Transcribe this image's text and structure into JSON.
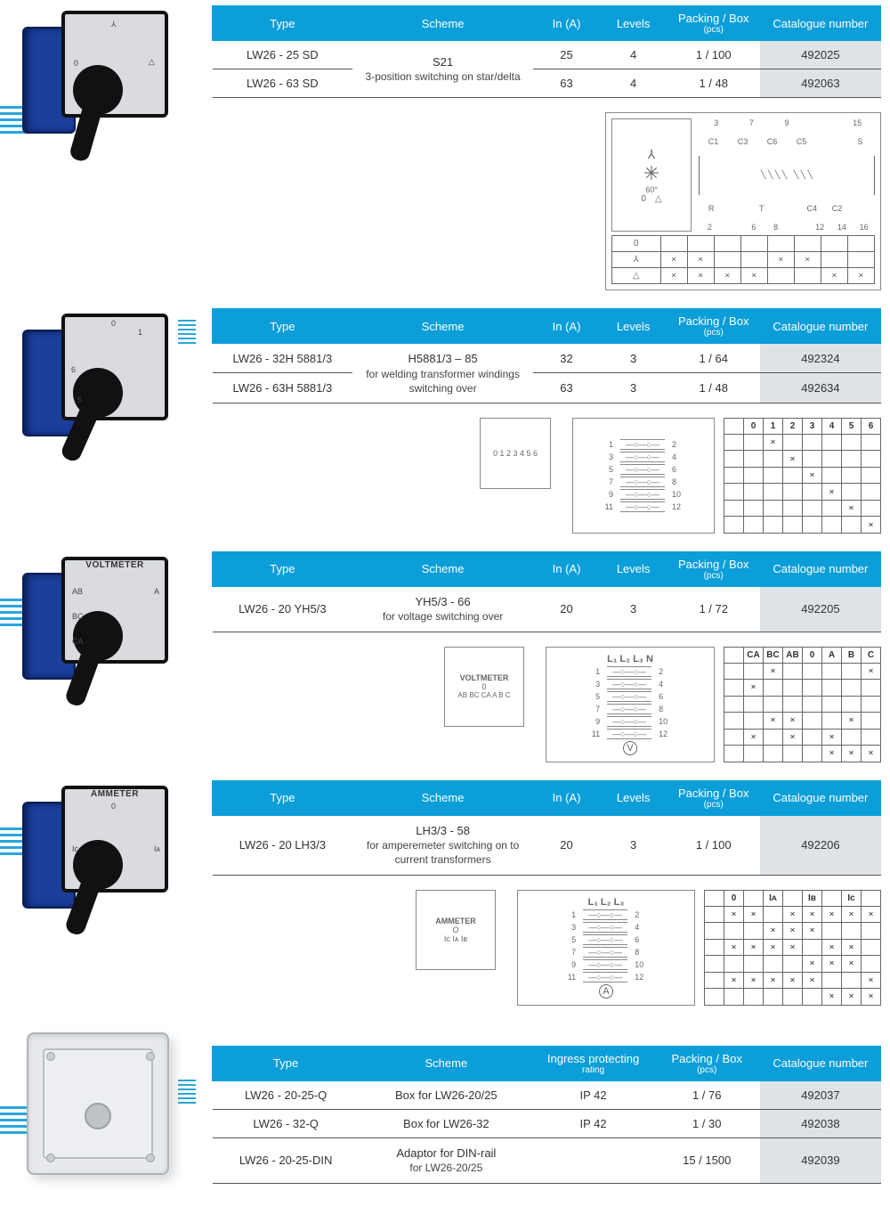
{
  "colors": {
    "header_bg": "#0b9ed9",
    "header_fg": "#ffffff",
    "cat_bg": "#dfe3e6",
    "stripe": "#29a6dd"
  },
  "headers_std": {
    "type": "Type",
    "scheme": "Scheme",
    "in": "In (A)",
    "levels": "Levels",
    "pack_l1": "Packing / Box",
    "pack_l2": "(pcs)",
    "cat": "Catalogue number"
  },
  "headers_box": {
    "type": "Type",
    "scheme": "Scheme",
    "ip_l1": "Ingress protecting",
    "ip_l2": "rating",
    "pack_l1": "Packing / Box",
    "pack_l2": "(pcs)",
    "cat": "Catalogue number"
  },
  "sec1": {
    "scheme_title": "S21",
    "scheme_desc": "3-position switching on star/delta",
    "rows": [
      {
        "type": "LW26 - 25 SD",
        "in": "25",
        "levels": "4",
        "pack": "1 / 100",
        "cat": "492025"
      },
      {
        "type": "LW26 - 63 SD",
        "in": "63",
        "levels": "4",
        "pack": "1 / 48",
        "cat": "492063"
      }
    ],
    "diag": {
      "left_label": "60°",
      "top_labels": [
        "3",
        "7",
        "9",
        "",
        "15"
      ],
      "mid_labels": [
        "C1",
        "C3",
        "C6",
        "C5",
        "",
        "S"
      ],
      "bot_labels": [
        "R",
        "",
        "T",
        "",
        "C4",
        "C2",
        ""
      ],
      "bot_nums": [
        "2",
        "",
        "6",
        "8",
        "",
        "12",
        "14",
        "16"
      ],
      "pos_rows": [
        {
          "sym": "0",
          "cells": [
            "",
            "",
            "",
            "",
            "",
            "",
            "",
            ""
          ]
        },
        {
          "sym": "⅄",
          "cells": [
            "×",
            "×",
            "",
            "",
            "×",
            "×",
            "",
            ""
          ]
        },
        {
          "sym": "△",
          "cells": [
            "×",
            "×",
            "×",
            "×",
            "",
            "",
            "×",
            "×"
          ]
        }
      ]
    }
  },
  "sec2": {
    "scheme_title": "H5881/3 – 85",
    "scheme_desc": "for welding transformer windings switching over",
    "rows": [
      {
        "type": "LW26 - 32H 5881/3",
        "in": "32",
        "levels": "3",
        "pack": "1 / 64",
        "cat": "492324"
      },
      {
        "type": "LW26 - 63H 5881/3",
        "in": "63",
        "levels": "3",
        "pack": "1 / 48",
        "cat": "492634"
      }
    ],
    "dial_labels": [
      "0",
      "1",
      "2",
      "3",
      "4",
      "5",
      "6"
    ],
    "term_pairs": [
      [
        "1",
        "2"
      ],
      [
        "3",
        "4"
      ],
      [
        "5",
        "6"
      ],
      [
        "7",
        "8"
      ],
      [
        "9",
        "10"
      ],
      [
        "11",
        "12"
      ]
    ],
    "pos_header": [
      "0",
      "1",
      "2",
      "3",
      "4",
      "5",
      "6"
    ],
    "pos_cells": [
      [
        "",
        "×",
        "",
        "",
        "",
        "",
        ""
      ],
      [
        "",
        "",
        "×",
        "",
        "",
        "",
        ""
      ],
      [
        "",
        "",
        "",
        "×",
        "",
        "",
        ""
      ],
      [
        "",
        "",
        "",
        "",
        "×",
        "",
        ""
      ],
      [
        "",
        "",
        "",
        "",
        "",
        "×",
        ""
      ],
      [
        "",
        "",
        "",
        "",
        "",
        "",
        "×"
      ]
    ]
  },
  "sec3": {
    "device_label": "VOLTMETER",
    "scheme_title": "YH5/3 - 66",
    "scheme_desc": "for voltage switching over",
    "rows": [
      {
        "type": "LW26 - 20 YH5/3",
        "in": "20",
        "levels": "3",
        "pack": "1 / 72",
        "cat": "492205"
      }
    ],
    "dial_top": "0",
    "dial_labels": [
      "AB",
      "BC",
      "CA",
      "A",
      "B",
      "C"
    ],
    "lines": "L₁ L₂ L₃ N",
    "term_pairs": [
      [
        "1",
        "2"
      ],
      [
        "3",
        "4"
      ],
      [
        "5",
        "6"
      ],
      [
        "7",
        "8"
      ],
      [
        "9",
        "10"
      ],
      [
        "11",
        "12"
      ]
    ],
    "meter": "V",
    "pos_header": [
      "CA",
      "BC",
      "AB",
      "0",
      "A",
      "B",
      "C"
    ],
    "pos_cells": [
      [
        "",
        "×",
        "",
        "",
        "",
        "",
        "×"
      ],
      [
        "×",
        "",
        "",
        "",
        "",
        "",
        ""
      ],
      [
        "",
        "",
        "",
        "",
        "",
        "",
        ""
      ],
      [
        "",
        "×",
        "×",
        "",
        "",
        "×",
        ""
      ],
      [
        "×",
        "",
        "×",
        "",
        "×",
        "",
        ""
      ],
      [
        "",
        "",
        "",
        "",
        "×",
        "×",
        "×"
      ]
    ]
  },
  "sec4": {
    "device_label": "AMMETER",
    "scheme_title": "LH3/3 - 58",
    "scheme_desc": "for amperemeter switching on to current transformers",
    "rows": [
      {
        "type": "LW26 - 20 LH3/3",
        "in": "20",
        "levels": "3",
        "pack": "1 / 100",
        "cat": "492206"
      }
    ],
    "dial_top": "O",
    "dial_labels": [
      "Iᴄ",
      "Iᴀ",
      "Iʙ"
    ],
    "lines": "L₁ L₂ L₃",
    "term_pairs": [
      [
        "1",
        "2"
      ],
      [
        "3",
        "4"
      ],
      [
        "5",
        "6"
      ],
      [
        "7",
        "8"
      ],
      [
        "9",
        "10"
      ],
      [
        "11",
        "12"
      ]
    ],
    "meter": "A",
    "pos_header": [
      "0",
      "",
      "Iᴀ",
      "",
      "Iʙ",
      "",
      "Iᴄ",
      ""
    ],
    "pos_cells": [
      [
        "×",
        "×",
        "",
        "×",
        "×",
        "×",
        "×",
        "×"
      ],
      [
        "",
        "",
        "×",
        "×",
        "×",
        "",
        "",
        ""
      ],
      [
        "×",
        "×",
        "×",
        "×",
        "",
        "×",
        "×",
        ""
      ],
      [
        "",
        "",
        "",
        "",
        "×",
        "×",
        "×",
        ""
      ],
      [
        "×",
        "×",
        "×",
        "×",
        "×",
        "",
        "",
        "×"
      ],
      [
        "",
        "",
        "",
        "",
        "",
        "×",
        "×",
        "×"
      ]
    ]
  },
  "sec5": {
    "rows": [
      {
        "type": "LW26 - 20-25-Q",
        "scheme": "Box for LW26-20/25",
        "ip": "IP 42",
        "pack": "1 / 76",
        "cat": "492037"
      },
      {
        "type": "LW26 - 32-Q",
        "scheme": "Box for LW26-32",
        "ip": "IP 42",
        "pack": "1 / 30",
        "cat": "492038"
      },
      {
        "type": "LW26 - 20-25-DIN",
        "scheme_l1": "Adaptor for DIN-rail",
        "scheme_l2": "for LW26-20/25",
        "ip": "",
        "pack": "15 / 1500",
        "cat": "492039"
      }
    ]
  }
}
